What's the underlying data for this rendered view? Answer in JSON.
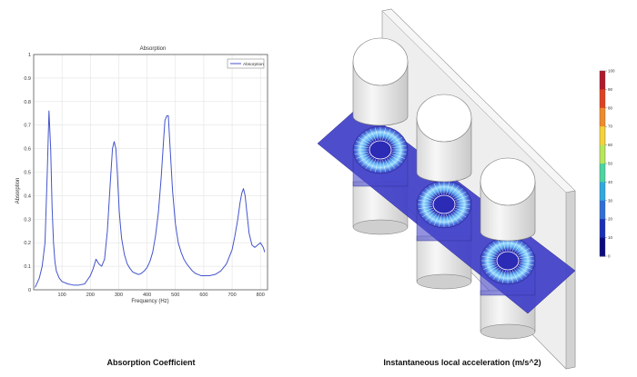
{
  "chart_data": {
    "type": "line",
    "title": "Absorption",
    "xlabel": "Frequency (Hz)",
    "ylabel": "Absorption",
    "xlim": [
      0,
      825
    ],
    "ylim": [
      0,
      1
    ],
    "xticks": [
      "100",
      "200",
      "300",
      "400",
      "500",
      "600",
      "700",
      "800"
    ],
    "yticks": [
      "0",
      "0.1",
      "0.2",
      "0.3",
      "0.4",
      "0.5",
      "0.6",
      "0.7",
      "0.8",
      "0.9",
      "1"
    ],
    "grid": true,
    "legend_position": "top-right",
    "series": [
      {
        "name": "Absorption",
        "color": "#4455cc",
        "x": [
          5,
          20,
          30,
          40,
          48,
          54,
          60,
          65,
          70,
          75,
          80,
          90,
          100,
          120,
          140,
          160,
          180,
          200,
          210,
          220,
          230,
          240,
          250,
          260,
          270,
          278,
          284,
          290,
          295,
          302,
          310,
          320,
          330,
          340,
          350,
          360,
          370,
          380,
          390,
          400,
          410,
          420,
          430,
          440,
          450,
          458,
          463,
          470,
          475,
          480,
          490,
          500,
          510,
          520,
          530,
          540,
          550,
          560,
          570,
          580,
          590,
          600,
          620,
          640,
          660,
          680,
          700,
          710,
          720,
          728,
          734,
          740,
          746,
          752,
          760,
          770,
          780,
          790,
          800,
          810,
          815
        ],
        "y": [
          0.01,
          0.05,
          0.1,
          0.2,
          0.5,
          0.76,
          0.6,
          0.35,
          0.2,
          0.12,
          0.08,
          0.05,
          0.035,
          0.025,
          0.02,
          0.02,
          0.025,
          0.06,
          0.09,
          0.13,
          0.11,
          0.1,
          0.13,
          0.25,
          0.45,
          0.6,
          0.63,
          0.6,
          0.5,
          0.33,
          0.22,
          0.15,
          0.11,
          0.09,
          0.075,
          0.07,
          0.065,
          0.07,
          0.08,
          0.095,
          0.12,
          0.16,
          0.23,
          0.33,
          0.48,
          0.63,
          0.72,
          0.74,
          0.74,
          0.63,
          0.42,
          0.28,
          0.2,
          0.16,
          0.13,
          0.11,
          0.095,
          0.08,
          0.07,
          0.065,
          0.06,
          0.06,
          0.06,
          0.065,
          0.08,
          0.11,
          0.17,
          0.23,
          0.3,
          0.37,
          0.41,
          0.43,
          0.4,
          0.33,
          0.24,
          0.19,
          0.18,
          0.19,
          0.2,
          0.18,
          0.16
        ]
      }
    ]
  },
  "colorbar": {
    "ticks": [
      "100",
      "90",
      "80",
      "70",
      "60",
      "50",
      "40",
      "30",
      "20",
      "10",
      "0"
    ],
    "colors": [
      "#b2182b",
      "#e04020",
      "#f08a2a",
      "#f5d23a",
      "#b8e65a",
      "#4dd4a0",
      "#2fa9e0",
      "#2f6fd8",
      "#1a2fb8",
      "#0a0a80"
    ]
  },
  "captions": {
    "left": "Absorption Coefficient",
    "right": "Instantaneous local acceleration (m/s^2)"
  }
}
